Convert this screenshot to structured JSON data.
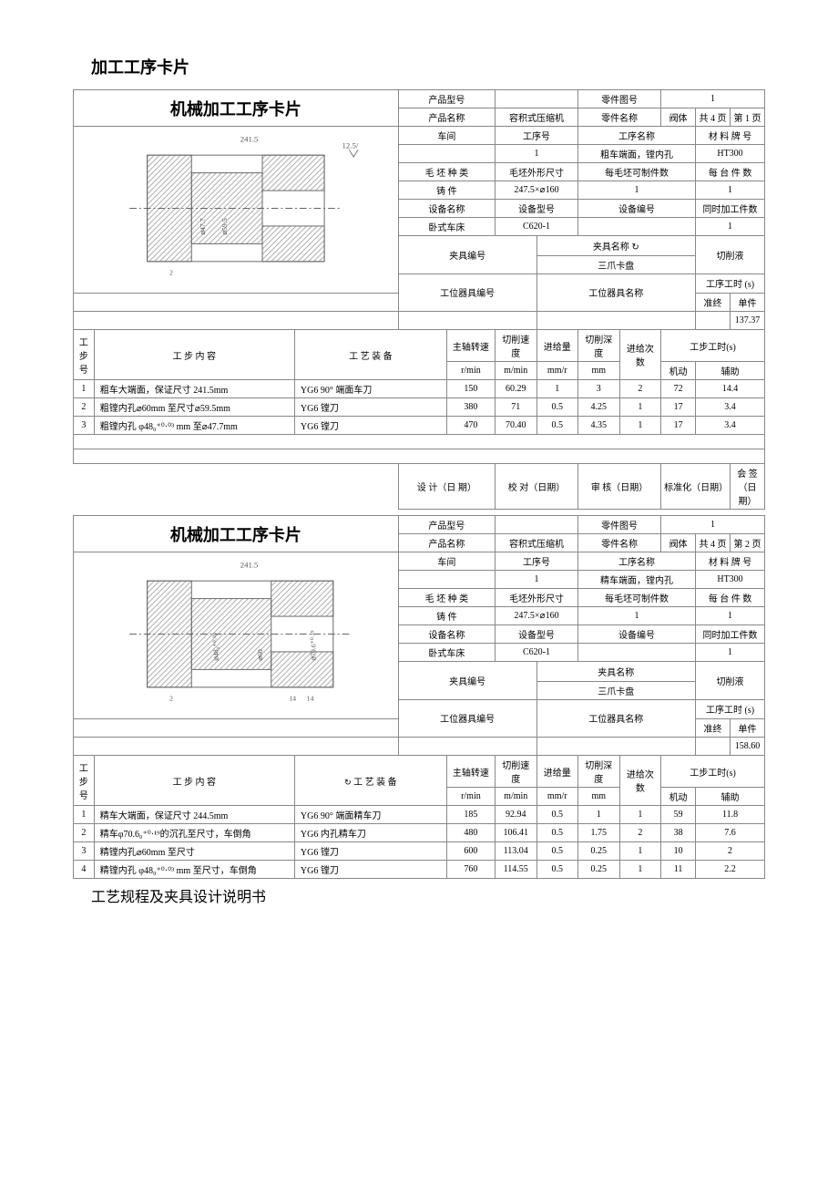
{
  "pageTitle": "加工工序卡片",
  "footer": "工艺规程及夹具设计说明书",
  "card1": {
    "cardTitle": "机械加工工序卡片",
    "labels": {
      "productModel": "产品型号",
      "partDrawingNo": "零件图号",
      "productName": "产品名称",
      "partName": "零件名称",
      "workshop": "车间",
      "processNo": "工序号",
      "processName": "工序名称",
      "materialGrade": "材 料 牌 号",
      "blankType": "毛 坯 种 类",
      "blankSize": "毛坯外形尺寸",
      "blankPerPart": "每毛坯可制件数",
      "partsPerBatch": "每 台 件 数",
      "equipName": "设备名称",
      "equipModel": "设备型号",
      "equipNo": "设备编号",
      "simParts": "同时加工件数",
      "fixtureNo": "夹具编号",
      "fixtureName": "夹具名称",
      "coolant": "切削液",
      "stationToolNo": "工位器具编号",
      "stationToolName": "工位器具名称",
      "processTime": "工序工时 (s)",
      "quasi": "准终",
      "unit": "单件",
      "casting": "铸  件",
      "lathe": "卧式车床",
      "total": "共  4  页",
      "page": "第  1  页"
    },
    "values": {
      "productNameVal": "容积式压缩机",
      "partDrawingNoVal": "1",
      "partNameVal": "阀体",
      "processNoVal": "1",
      "processNameVal": "粗车端面，镗内孔",
      "materialVal": "HT300",
      "blankSizeVal": "247.5×⌀160",
      "blankPerPartVal": "1",
      "partsPerBatchVal": "1",
      "equipModelVal": "C620-1",
      "simPartsVal": "1",
      "fixtureNameVal": "三爪卡盘",
      "unitTimeVal": "137.37"
    },
    "stepHeaders": {
      "stepNo": "工步号",
      "stepContent": "工    步    内    容",
      "tooling": "工  艺  装  备",
      "spindle": "主轴转速",
      "spindleUnit": "r/min",
      "cutSpeed": "切削速度",
      "cutSpeedUnit": "m/min",
      "feed": "进给量",
      "feedUnit": "mm/r",
      "depth": "切削深度",
      "depthUnit": "mm",
      "passes": "进给次数",
      "stepTime": "工步工时(s)",
      "machine": "机动",
      "aux": "辅助"
    },
    "steps": [
      {
        "no": "1",
        "content": "粗车大端面，保证尺寸 241.5mm",
        "tool": "YG6  90° 端面车刀",
        "sp": "150",
        "cs": "60.29",
        "fd": "1",
        "dp": "3",
        "ps": "2",
        "tm": "72",
        "ax": "14.4"
      },
      {
        "no": "2",
        "content": "粗镗内孔⌀60mm 至尺寸⌀59.5mm",
        "tool": "YG6 镗刀",
        "sp": "380",
        "cs": "71",
        "fd": "0.5",
        "dp": "4.25",
        "ps": "1",
        "tm": "17",
        "ax": "3.4"
      },
      {
        "no": "3",
        "content": "粗镗内孔 φ48₀⁺⁰·⁰³ mm 至⌀47.7mm",
        "tool": "YG6 镗刀",
        "sp": "470",
        "cs": "70.40",
        "fd": "0.5",
        "dp": "4.35",
        "ps": "1",
        "tm": "17",
        "ax": "3.4"
      }
    ],
    "sigs": {
      "design": "设 计（日 期）",
      "check": "校 对（日期）",
      "audit": "审 核（日期）",
      "std": "标准化（日期）",
      "sign": "会 签（日期）"
    }
  },
  "card2": {
    "cardTitle": "机械加工工序卡片",
    "labels": {
      "total": "共  4  页",
      "page": "第  2  页"
    },
    "values": {
      "processNoVal": "1",
      "processNameVal": "精车端面，镗内孔",
      "unitTimeVal": "158.60"
    },
    "steps": [
      {
        "no": "1",
        "content": "精车大端面，保证尺寸 244.5mm",
        "tool": "YG6  90° 端面精车刀",
        "sp": "185",
        "cs": "92.94",
        "fd": "0.5",
        "dp": "1",
        "ps": "1",
        "tm": "59",
        "ax": "11.8"
      },
      {
        "no": "2",
        "content": "精车φ70.6₀⁺⁰·¹⁹的沉孔至尺寸，车倒角",
        "tool": "YG6 内孔精车刀",
        "sp": "480",
        "cs": "106.41",
        "fd": "0.5",
        "dp": "1.75",
        "ps": "2",
        "tm": "38",
        "ax": "7.6"
      },
      {
        "no": "3",
        "content": "精镗内孔⌀60mm 至尺寸",
        "tool": "YG6 镗刀",
        "sp": "600",
        "cs": "113.04",
        "fd": "0.5",
        "dp": "0.25",
        "ps": "1",
        "tm": "10",
        "ax": "2"
      },
      {
        "no": "4",
        "content": "精镗内孔 φ48₀⁺⁰·⁰³ mm 至尺寸，车倒角",
        "tool": "YG6 镗刀",
        "sp": "760",
        "cs": "114.55",
        "fd": "0.5",
        "dp": "0.25",
        "ps": "1",
        "tm": "11",
        "ax": "2.2"
      }
    ]
  },
  "colors": {
    "border": "#888888",
    "hatch": "#b0b0b0",
    "bg": "#ffffff"
  }
}
